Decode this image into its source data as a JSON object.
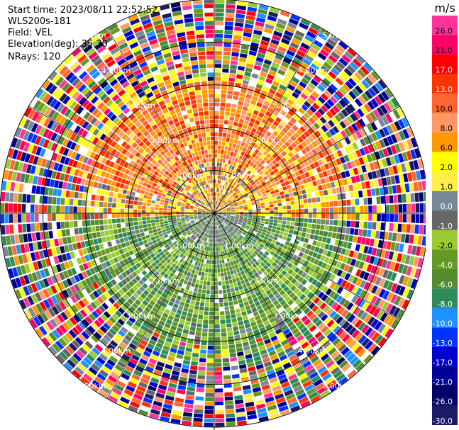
{
  "header": {
    "start_time": "Start time: 2023/08/11 22:52:52",
    "instrument": "WLS200s-181",
    "field": "Field: VEL",
    "elevation": "Elevation(deg): 35.30",
    "nrays": "NRays: 120"
  },
  "colorbar": {
    "unit": "m/s",
    "labels": [
      "26.0",
      "21.0",
      "17.0",
      "13.0",
      "10.0",
      "8.0",
      "6.0",
      "2.0",
      "1.0",
      "0.0",
      "-1.0",
      "-2.0",
      "-4.0",
      "-6.0",
      "-8.0",
      "-10.0",
      "-13.0",
      "-17.0",
      "-21.0",
      "-26.0",
      "-30.0"
    ],
    "colors": [
      "#ff3399",
      "#ff0066",
      "#ff0000",
      "#ff3300",
      "#ff6633",
      "#ff9966",
      "#ff9900",
      "#ffff00",
      "#ffee44",
      "#778899",
      "#666666",
      "#99cc33",
      "#669922",
      "#558b2f",
      "#2e8b57",
      "#1e90ff",
      "#0033ff",
      "#0000cc",
      "#000099",
      "#000066",
      "#1a1a66"
    ]
  },
  "chart_data": {
    "type": "heatmap",
    "projection": "polar PPI",
    "field": "VEL",
    "units": "m/s",
    "nrays": 120,
    "range_rings_km": [
      1.0,
      2.0,
      3.0,
      4.0,
      5.0
    ],
    "range_ring_labels": [
      "1.00km",
      "2.00km",
      "3.00km",
      "4.00km",
      "5.00km"
    ],
    "azimuth_spokes_deg": [
      0,
      30,
      60,
      90,
      120,
      150,
      180,
      210,
      240,
      270,
      300,
      330
    ],
    "sectors": [
      {
        "azimuth": "north",
        "range_km": [
          0.0,
          3.0
        ],
        "typical_velocity_ms": 8.0
      },
      {
        "azimuth": "east-west band",
        "range_km": [
          0.0,
          2.5
        ],
        "typical_velocity_ms": 2.0
      },
      {
        "azimuth": "south",
        "range_km": [
          0.0,
          3.0
        ],
        "typical_velocity_ms": -4.0
      },
      {
        "azimuth": "all",
        "range_km": [
          3.5,
          5.0
        ],
        "typical_velocity_ms": "noise (mixed)"
      }
    ]
  }
}
